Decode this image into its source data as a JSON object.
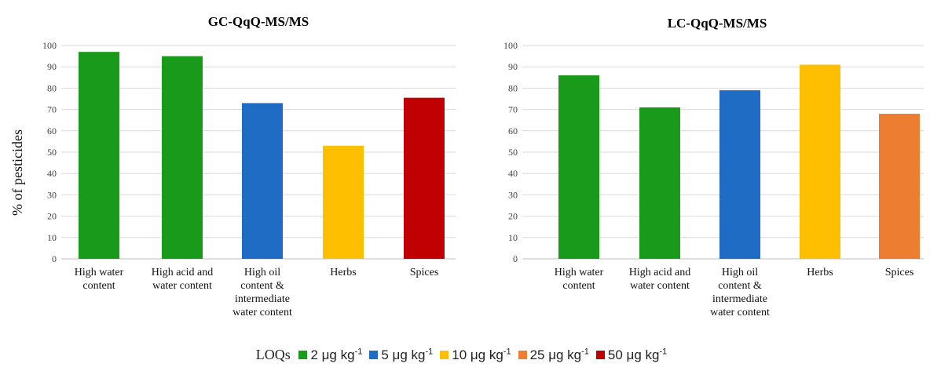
{
  "chart_data": [
    {
      "type": "bar",
      "title": "GC-QqQ-MS/MS",
      "ylabel": "% of pesticides",
      "ylim": [
        0,
        100
      ],
      "yticks": [
        0,
        10,
        20,
        30,
        40,
        50,
        60,
        70,
        80,
        90,
        100
      ],
      "grid": true,
      "categories": [
        [
          "High water",
          "content"
        ],
        [
          "High acid and",
          "water content"
        ],
        [
          "High oil",
          "content &",
          "intermediate",
          "water content"
        ],
        [
          "Herbs"
        ],
        [
          "Spices"
        ]
      ],
      "values": [
        97,
        95,
        73,
        53,
        75.5
      ],
      "colors": [
        "#1a9a1a",
        "#1a9a1a",
        "#1e6cc4",
        "#fdbf00",
        "#c00000"
      ]
    },
    {
      "type": "bar",
      "title": "LC-QqQ-MS/MS",
      "ylabel": "",
      "ylim": [
        0,
        100
      ],
      "yticks": [
        0,
        10,
        20,
        30,
        40,
        50,
        60,
        70,
        80,
        90,
        100
      ],
      "grid": true,
      "categories": [
        [
          "High water",
          "content"
        ],
        [
          "High acid and",
          "water content"
        ],
        [
          "High oil",
          "content &",
          "intermediate",
          "water content"
        ],
        [
          "Herbs"
        ],
        [
          "Spices"
        ]
      ],
      "values": [
        86,
        71,
        79,
        91,
        68
      ],
      "colors": [
        "#1a9a1a",
        "#1a9a1a",
        "#1e6cc4",
        "#fdbf00",
        "#ed7d31"
      ]
    }
  ],
  "legend": {
    "title": "LOQs",
    "items": [
      {
        "label": "2 μg kg",
        "sup": "-1",
        "color": "#1a9a1a"
      },
      {
        "label": "5 μg kg",
        "sup": "-1",
        "color": "#1e6cc4"
      },
      {
        "label": "10 μg kg",
        "sup": "-1",
        "color": "#fdbf00"
      },
      {
        "label": "25 μg kg",
        "sup": "-1",
        "color": "#ed7d31"
      },
      {
        "label": "50 μg kg",
        "sup": "-1",
        "color": "#c00000"
      }
    ]
  }
}
